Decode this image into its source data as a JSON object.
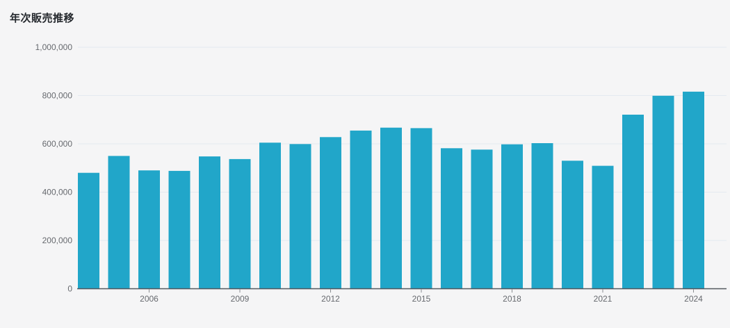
{
  "header": {
    "title": "年次販売推移"
  },
  "colors": {
    "background": "#f5f5f6",
    "bar": "#21a6c9",
    "gridline": "#e4e9f0",
    "axis_line": "#54585e",
    "tick_mark": "#8a8d91",
    "tick_label": "#66696e",
    "title_text": "#24282d"
  },
  "chart_data": {
    "type": "bar",
    "title": "年次販売推移",
    "xlabel": "",
    "ylabel": "",
    "categories": [
      "2004",
      "2005",
      "2006",
      "2007",
      "2008",
      "2009",
      "2010",
      "2011",
      "2012",
      "2013",
      "2014",
      "2015",
      "2016",
      "2017",
      "2018",
      "2019",
      "2020",
      "2021",
      "2022",
      "2023",
      "2024"
    ],
    "values": [
      480000,
      550000,
      490000,
      488000,
      548000,
      537000,
      605000,
      599000,
      628000,
      655000,
      667000,
      665000,
      582000,
      576000,
      598000,
      603000,
      530000,
      509000,
      721000,
      799000,
      816000
    ],
    "ylim": [
      0,
      1000000
    ],
    "y_ticks": [
      0,
      200000,
      400000,
      600000,
      800000,
      1000000
    ],
    "y_tick_labels": [
      "0",
      "200,000",
      "400,000",
      "600,000",
      "800,000",
      "1,000,000"
    ],
    "x_tick_labels": [
      "2006",
      "2009",
      "2012",
      "2015",
      "2018",
      "2021",
      "2024"
    ],
    "grid": true,
    "legend_position": "none",
    "bar_color": "#21a6c9"
  }
}
